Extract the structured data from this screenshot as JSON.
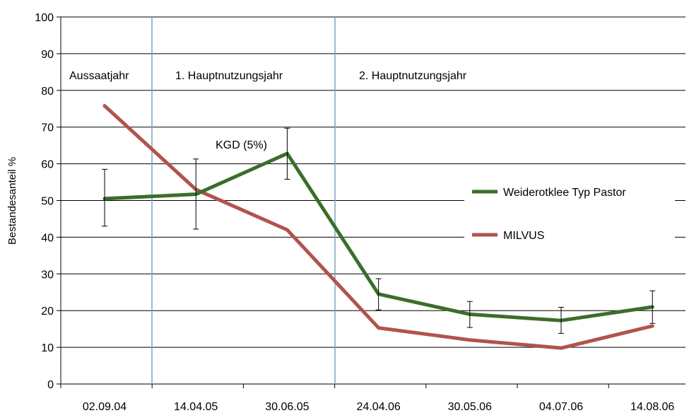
{
  "chart_data": {
    "type": "line",
    "title": "",
    "xlabel": "",
    "ylabel": "Bestandesanteil %",
    "ylim": [
      0,
      100
    ],
    "yticks": [
      0,
      10,
      20,
      30,
      40,
      50,
      60,
      70,
      80,
      90,
      100
    ],
    "categories": [
      "02.09.04",
      "14.04.05",
      "30.06.05",
      "24.04.06",
      "30.05.06",
      "04.07.06",
      "14.08.06"
    ],
    "grid": true,
    "legend_position": "right",
    "series": [
      {
        "name": "Weiderotklee Typ Pastor",
        "color": "#3a6e2a",
        "values": [
          50.5,
          51.7,
          62.8,
          24.5,
          19,
          17.3,
          21
        ],
        "error_bars": [
          [
            43,
            58.5
          ],
          [
            42.2,
            61.3
          ],
          [
            55.8,
            69.7
          ],
          [
            20.2,
            28.7
          ],
          [
            15.4,
            22.5
          ],
          [
            13.8,
            20.9
          ],
          [
            16.5,
            25.4
          ]
        ]
      },
      {
        "name": "MILVUS",
        "color": "#b0544c",
        "values": [
          75.8,
          53,
          42,
          15.3,
          12,
          9.8,
          15.8
        ]
      }
    ],
    "period_labels": [
      "Aussaatjahr",
      "1. Hauptnutzungsjahr",
      "2. Hauptnutzungsjahr"
    ],
    "separator_color": "#7fa3c4",
    "annotation": "KGD (5%)"
  }
}
